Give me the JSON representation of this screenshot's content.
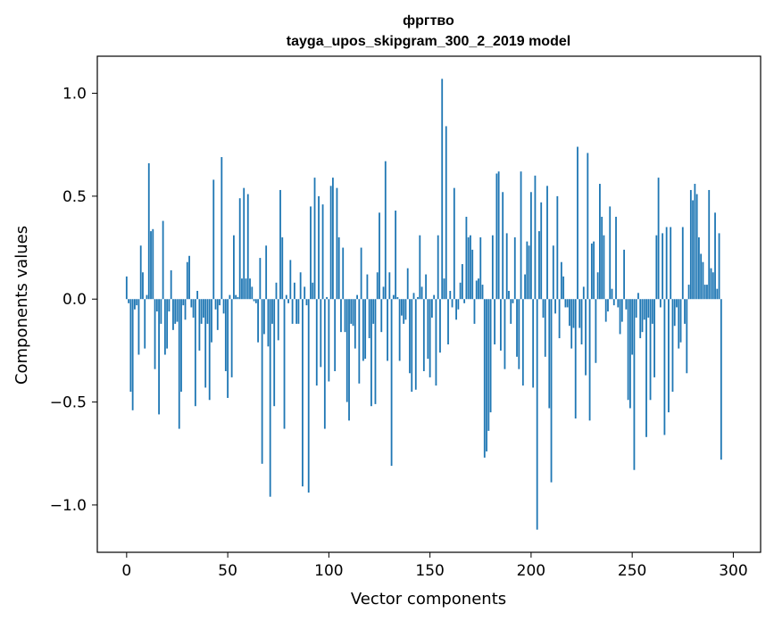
{
  "chart_data": {
    "type": "bar",
    "title": "фргтво",
    "subtitle": "tayga_upos_skipgram_300_2_2019 model",
    "xlabel": "Vector components",
    "ylabel": "Components values",
    "xlim": [
      -14.5,
      313.5
    ],
    "ylim": [
      -1.23,
      1.18
    ],
    "xticks": [
      0,
      50,
      100,
      150,
      200,
      250,
      300
    ],
    "yticks": [
      -1.0,
      -0.5,
      0.0,
      0.5,
      1.0
    ],
    "ytick_labels": [
      "−1.0",
      "−0.5",
      "0.0",
      "0.5",
      "1.0"
    ],
    "bar_color": "#1f77b4",
    "x": "0..299",
    "values": [
      0.11,
      -0.02,
      -0.45,
      -0.54,
      -0.05,
      -0.03,
      -0.27,
      0.26,
      0.13,
      -0.24,
      0.02,
      0.66,
      0.33,
      0.34,
      -0.34,
      -0.06,
      -0.56,
      -0.12,
      0.38,
      -0.27,
      -0.24,
      -0.06,
      0.14,
      -0.15,
      -0.12,
      -0.11,
      -0.63,
      -0.45,
      -0.03,
      -0.1,
      0.18,
      0.21,
      -0.04,
      -0.09,
      -0.52,
      0.04,
      -0.25,
      -0.12,
      -0.09,
      -0.43,
      -0.12,
      -0.49,
      -0.21,
      0.58,
      -0.05,
      -0.15,
      -0.03,
      0.69,
      -0.07,
      -0.35,
      -0.48,
      0.02,
      -0.38,
      0.31,
      0.02,
      0.01,
      0.49,
      0.1,
      0.54,
      0.1,
      0.51,
      0.1,
      0.06,
      -0.01,
      -0.02,
      -0.21,
      0.2,
      -0.8,
      -0.17,
      0.26,
      -0.23,
      -0.96,
      -0.12,
      -0.52,
      0.08,
      -0.2,
      0.53,
      0.3,
      -0.63,
      0.02,
      -0.02,
      0.19,
      -0.12,
      0.08,
      -0.12,
      -0.12,
      0.13,
      -0.91,
      0.06,
      -0.03,
      -0.94,
      0.45,
      0.08,
      0.59,
      -0.42,
      0.5,
      -0.33,
      0.46,
      -0.63,
      0.01,
      -0.4,
      0.55,
      0.59,
      -0.35,
      0.54,
      0.3,
      -0.16,
      0.25,
      -0.16,
      -0.5,
      -0.59,
      -0.12,
      -0.13,
      -0.24,
      0.02,
      -0.41,
      0.25,
      -0.3,
      -0.29,
      0.12,
      -0.19,
      -0.52,
      -0.12,
      -0.51,
      0.13,
      0.42,
      -0.16,
      0.06,
      0.67,
      -0.3,
      0.13,
      -0.81,
      0.02,
      0.43,
      0.01,
      -0.3,
      -0.08,
      -0.12,
      -0.1,
      0.15,
      -0.36,
      -0.45,
      0.03,
      -0.44,
      0.01,
      0.31,
      0.06,
      -0.35,
      0.12,
      -0.29,
      -0.38,
      -0.09,
      0.02,
      -0.42,
      0.31,
      -0.26,
      1.07,
      0.1,
      0.84,
      -0.22,
      0.04,
      -0.04,
      0.54,
      -0.1,
      -0.05,
      0.08,
      0.17,
      -0.02,
      0.4,
      0.3,
      0.31,
      0.24,
      -0.12,
      0.09,
      0.1,
      0.3,
      0.07,
      -0.77,
      -0.74,
      -0.64,
      -0.55,
      0.31,
      -0.22,
      0.61,
      0.62,
      -0.25,
      0.52,
      -0.34,
      0.32,
      0.04,
      -0.12,
      -0.02,
      0.3,
      -0.28,
      -0.34,
      0.62,
      -0.42,
      0.12,
      0.28,
      0.26,
      0.52,
      -0.43,
      0.6,
      -1.12,
      0.33,
      0.47,
      -0.09,
      -0.28,
      0.55,
      -0.53,
      -0.89,
      0.26,
      -0.07,
      0.5,
      -0.19,
      0.18,
      0.11,
      -0.04,
      -0.04,
      -0.13,
      -0.24,
      -0.14,
      -0.58,
      0.74,
      -0.14,
      -0.22,
      0.06,
      -0.37,
      0.71,
      -0.59,
      0.27,
      0.28,
      -0.31,
      0.13,
      0.56,
      0.4,
      0.31,
      -0.11,
      -0.06,
      0.45,
      0.05,
      -0.03,
      0.4,
      -0.04,
      -0.17,
      -0.11,
      0.24,
      -0.05,
      -0.49,
      -0.53,
      -0.27,
      -0.83,
      -0.09,
      0.03,
      -0.19,
      -0.16,
      -0.1,
      -0.67,
      -0.09,
      -0.49,
      -0.12,
      -0.38,
      0.31,
      0.59,
      -0.04,
      0.32,
      -0.66,
      0.35,
      -0.55,
      0.35,
      -0.45,
      -0.13,
      -0.04,
      -0.24,
      -0.21,
      0.35,
      -0.12,
      -0.36,
      0.07,
      0.53,
      0.48,
      0.56,
      0.51,
      0.3,
      0.22,
      0.18,
      0.07,
      0.07,
      0.53,
      0.15,
      0.13,
      0.42,
      0.05,
      0.32,
      -0.78
    ]
  }
}
